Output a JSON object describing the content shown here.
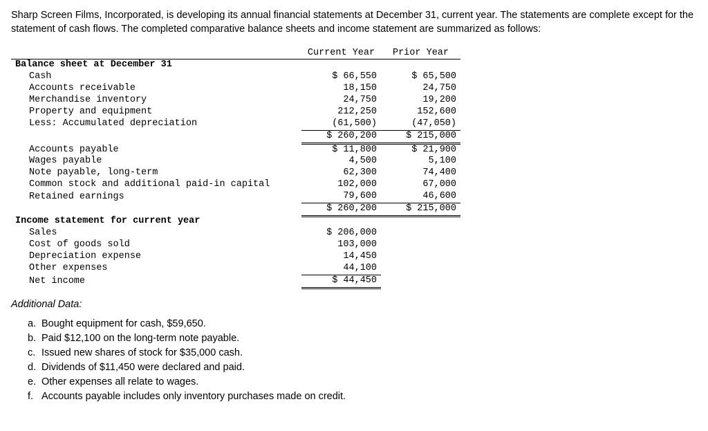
{
  "intro": "Sharp Screen Films, Incorporated, is developing its annual financial statements at December 31, current year. The statements are complete except for the statement of cash flows. The completed comparative balance sheets and income statement are summarized as follows:",
  "headers": {
    "cy": "Current Year",
    "py": "Prior Year"
  },
  "bs_title": "Balance sheet at December 31",
  "bs_assets": [
    {
      "label": "Cash",
      "cy": "$ 66,550",
      "py": "$ 65,500"
    },
    {
      "label": "Accounts receivable",
      "cy": "18,150",
      "py": "24,750"
    },
    {
      "label": "Merchandise inventory",
      "cy": "24,750",
      "py": "19,200"
    },
    {
      "label": "Property and equipment",
      "cy": "212,250",
      "py": "152,600"
    },
    {
      "label": "Less: Accumulated depreciation",
      "cy": "(61,500)",
      "py": "(47,050)"
    }
  ],
  "bs_assets_total": {
    "cy": "$ 260,200",
    "py": "$ 215,000"
  },
  "bs_liab": [
    {
      "label": "Accounts payable",
      "cy": "$ 11,800",
      "py": "$ 21,900"
    },
    {
      "label": "Wages payable",
      "cy": "4,500",
      "py": "5,100"
    },
    {
      "label": "Note payable, long-term",
      "cy": "62,300",
      "py": "74,400"
    },
    {
      "label": "Common stock and additional paid-in capital",
      "cy": "102,000",
      "py": "67,000"
    },
    {
      "label": "Retained earnings",
      "cy": "79,600",
      "py": "46,600"
    }
  ],
  "bs_liab_total": {
    "cy": "$ 260,200",
    "py": "$ 215,000"
  },
  "is_title": "Income statement for current year",
  "is_rows": [
    {
      "label": "Sales",
      "cy": "$ 206,000"
    },
    {
      "label": "Cost of goods sold",
      "cy": "103,000"
    },
    {
      "label": "Depreciation expense",
      "cy": "14,450"
    },
    {
      "label": "Other expenses",
      "cy": "44,100"
    }
  ],
  "is_net": {
    "label": "Net income",
    "cy": "$ 44,450"
  },
  "addl_title": "Additional Data:",
  "addl": [
    {
      "m": "a.",
      "t": "Bought equipment for cash, $59,650."
    },
    {
      "m": "b.",
      "t": "Paid $12,100 on the long-term note payable."
    },
    {
      "m": "c.",
      "t": "Issued new shares of stock for $35,000 cash."
    },
    {
      "m": "d.",
      "t": "Dividends of $11,450 were declared and paid."
    },
    {
      "m": "e.",
      "t": "Other expenses all relate to wages."
    },
    {
      "m": "f.",
      "t": "Accounts payable includes only inventory purchases made on credit."
    }
  ]
}
